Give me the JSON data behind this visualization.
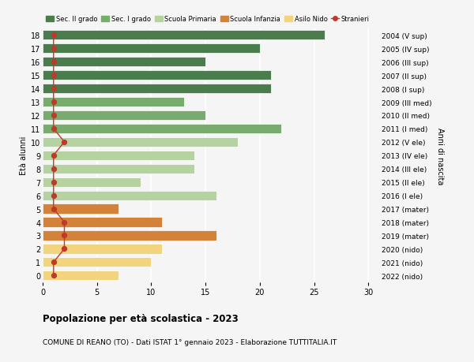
{
  "ages": [
    18,
    17,
    16,
    15,
    14,
    13,
    12,
    11,
    10,
    9,
    8,
    7,
    6,
    5,
    4,
    3,
    2,
    1,
    0
  ],
  "right_labels": [
    "2004 (V sup)",
    "2005 (IV sup)",
    "2006 (III sup)",
    "2007 (II sup)",
    "2008 (I sup)",
    "2009 (III med)",
    "2010 (II med)",
    "2011 (I med)",
    "2012 (V ele)",
    "2013 (IV ele)",
    "2014 (III ele)",
    "2015 (II ele)",
    "2016 (I ele)",
    "2017 (mater)",
    "2018 (mater)",
    "2019 (mater)",
    "2020 (nido)",
    "2021 (nido)",
    "2022 (nido)"
  ],
  "values": [
    26,
    20,
    15,
    21,
    21,
    13,
    15,
    22,
    18,
    14,
    14,
    9,
    16,
    7,
    11,
    16,
    11,
    10,
    7
  ],
  "stranieri": [
    1,
    1,
    1,
    1,
    1,
    1,
    1,
    1,
    2,
    1,
    1,
    1,
    1,
    1,
    2,
    2,
    2,
    1,
    1
  ],
  "bar_colors": [
    "#4a7c4e",
    "#4a7c4e",
    "#4a7c4e",
    "#4a7c4e",
    "#4a7c4e",
    "#7aab6e",
    "#7aab6e",
    "#7aab6e",
    "#b5d3a0",
    "#b5d3a0",
    "#b5d3a0",
    "#b5d3a0",
    "#b5d3a0",
    "#d4813a",
    "#d4813a",
    "#d4813a",
    "#f2d47e",
    "#f2d47e",
    "#f2d47e"
  ],
  "legend_labels": [
    "Sec. II grado",
    "Sec. I grado",
    "Scuola Primaria",
    "Scuola Infanzia",
    "Asilo Nido",
    "Stranieri"
  ],
  "legend_colors": [
    "#4a7c4e",
    "#7aab6e",
    "#b5d3a0",
    "#d4813a",
    "#f2d47e",
    "#c0392b"
  ],
  "stranieri_color": "#c0392b",
  "title_bold": "Popolazione per età scolastica - 2023",
  "subtitle": "COMUNE DI REANO (TO) - Dati ISTAT 1° gennaio 2023 - Elaborazione TUTTITALIA.IT",
  "ylabel_left": "Età alunni",
  "ylabel_right": "Anni di nascita",
  "xlim": [
    0,
    31
  ],
  "background_color": "#f5f5f5",
  "grid_color": "#ffffff"
}
